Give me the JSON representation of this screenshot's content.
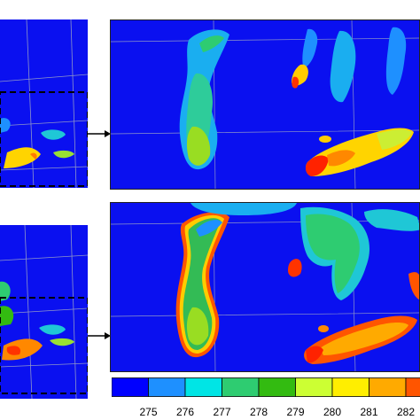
{
  "colorbar": {
    "ticks": [
      "275",
      "276",
      "277",
      "278",
      "279",
      "280",
      "281",
      "282"
    ],
    "colors": [
      "#0000ff",
      "#1e90ff",
      "#00e5e5",
      "#2ecc71",
      "#33bb11",
      "#ccff33",
      "#ffee00",
      "#ffaa00",
      "#ff5500"
    ]
  },
  "palette": {
    "water_bg": "#0a10f0",
    "grid": "#8f96c8",
    "frame": "#222222",
    "dashed_box": "#000000"
  }
}
